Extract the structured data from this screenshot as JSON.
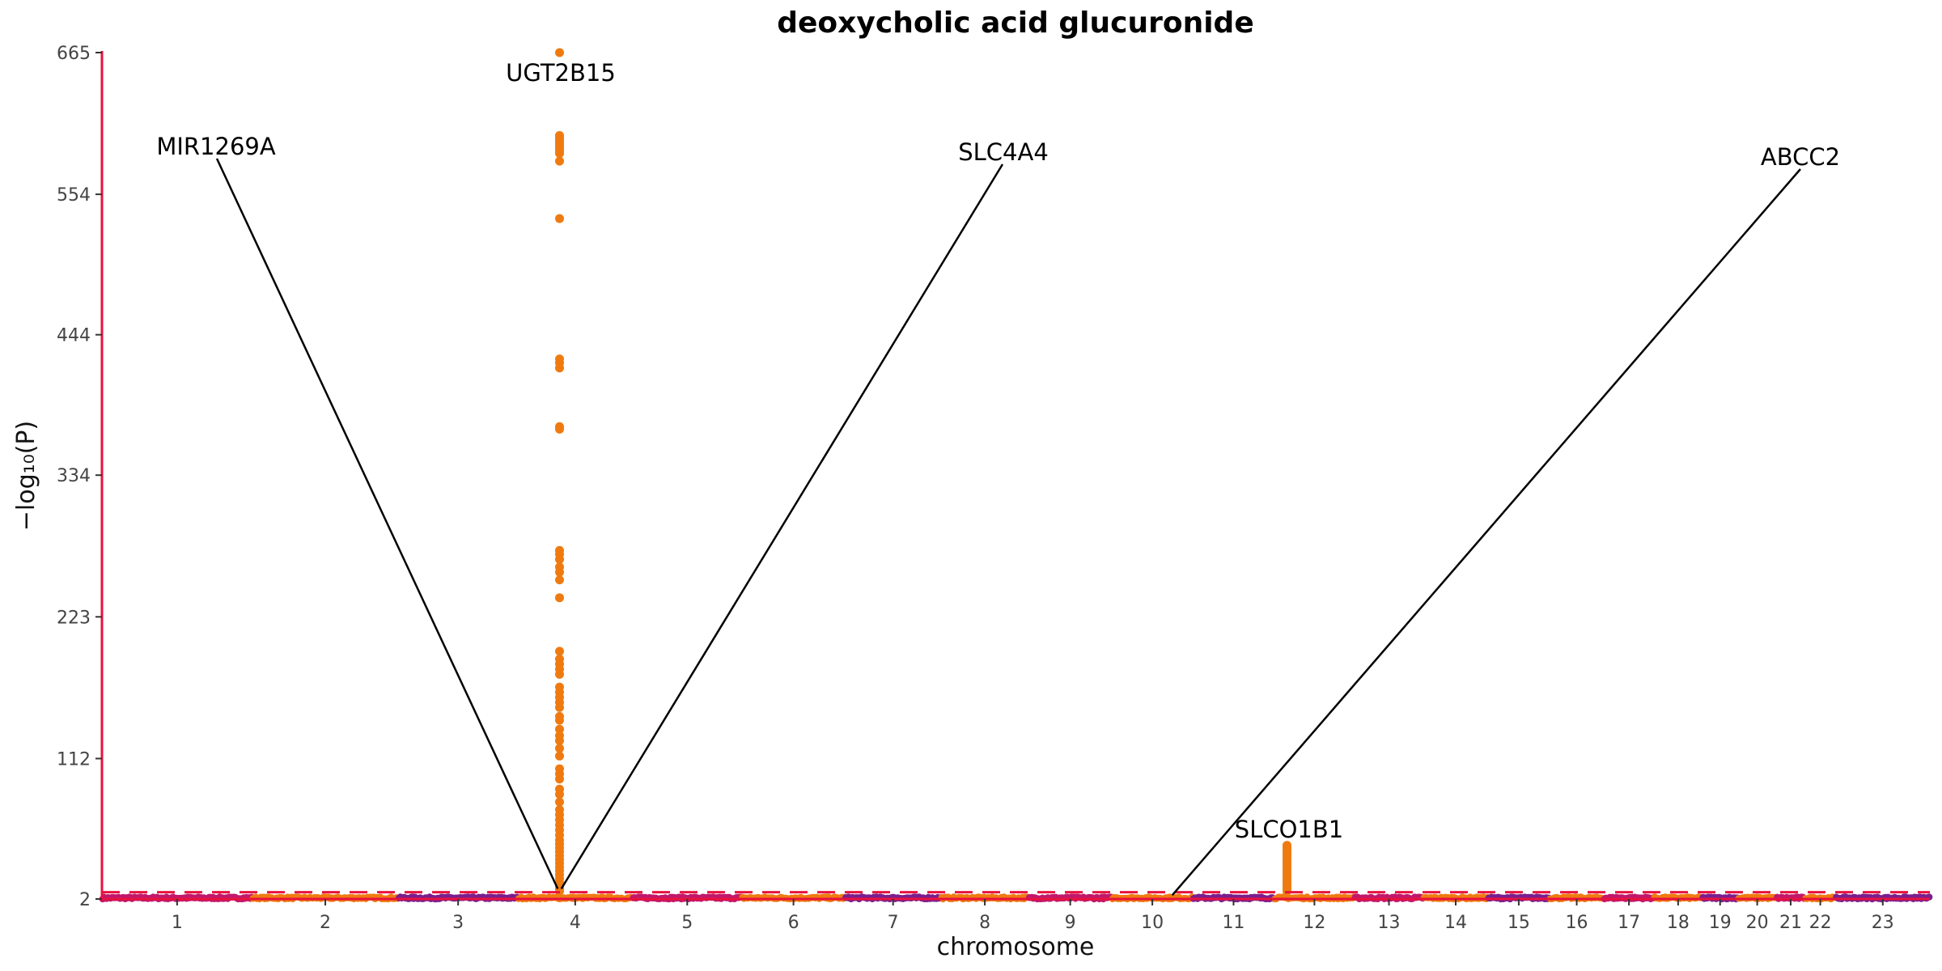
{
  "chart_data": {
    "type": "scatter",
    "subtype": "manhattan",
    "title": "deoxycholic acid glucuronide",
    "xlabel": "chromosome",
    "ylabel": "−log₁₀(P)",
    "ylim": [
      2,
      665
    ],
    "y_ticks": [
      2,
      112,
      223,
      334,
      444,
      554,
      665
    ],
    "grid": false,
    "legend": "none",
    "chromosomes": [
      "1",
      "2",
      "3",
      "4",
      "5",
      "6",
      "7",
      "8",
      "9",
      "10",
      "11",
      "12",
      "13",
      "14",
      "15",
      "16",
      "17",
      "18",
      "19",
      "20",
      "21",
      "22",
      "23"
    ],
    "chromosome_lengths_mb": [
      249,
      242,
      198,
      190,
      181,
      171,
      159,
      145,
      138,
      134,
      135,
      133,
      114,
      107,
      102,
      90,
      83,
      80,
      59,
      64,
      47,
      51,
      156
    ],
    "significance_threshold": 7.3,
    "point_colors": [
      "#c0186c",
      "#ef7b10",
      "#7a1e8e",
      "#ef7b10"
    ],
    "threshold_color": "#e8123e",
    "axis_color": "#e8123e",
    "peak_color": "#ef7b10",
    "peaks": [
      {
        "chromosome": "4",
        "position_mb": 69,
        "values": [
          665,
          600,
          598,
          596,
          594,
          592,
          590,
          588,
          586,
          580,
          535,
          425,
          422,
          418,
          372,
          370,
          275,
          272,
          268,
          262,
          258,
          252,
          238,
          196,
          190,
          186,
          182,
          178,
          168,
          164,
          160,
          156,
          152,
          145,
          142,
          135,
          130,
          126,
          120,
          114,
          104,
          100,
          96,
          88,
          84,
          78,
          72,
          68,
          64,
          60,
          56,
          52,
          48,
          45,
          42,
          39,
          36,
          33,
          30,
          27,
          24,
          21,
          18,
          15,
          12,
          10,
          8
        ]
      },
      {
        "chromosome": "12",
        "position_mb": 21,
        "values": [
          44,
          42,
          40,
          38,
          36,
          34,
          32,
          30,
          28,
          26,
          24,
          22,
          20,
          18,
          16,
          14,
          12,
          10,
          8
        ]
      }
    ],
    "annotations": [
      {
        "label": "UGT2B15",
        "chromosome": "4",
        "position_mb": 69,
        "y": 665
      },
      {
        "label": "MIR1269A",
        "chromosome": "4",
        "position_mb": 66,
        "y": 10
      },
      {
        "label": "SLC4A4",
        "chromosome": "4",
        "position_mb": 72,
        "y": 10
      },
      {
        "label": "ABCC2",
        "chromosome": "10",
        "position_mb": 100,
        "y": 5
      },
      {
        "label": "SLCO1B1",
        "chromosome": "12",
        "position_mb": 21,
        "y": 44
      }
    ]
  }
}
